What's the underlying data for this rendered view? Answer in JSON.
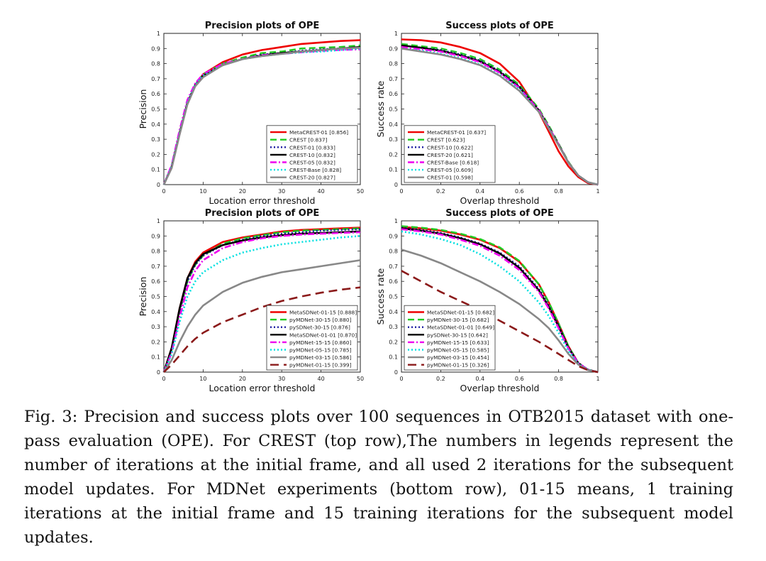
{
  "chart_data": [
    {
      "type": "line",
      "title": "Precision plots of OPE",
      "xlabel": "Location error threshold",
      "ylabel": "Precision",
      "xlim": [
        0,
        50
      ],
      "ylim": [
        0,
        1
      ],
      "xticks": [
        "0",
        "10",
        "20",
        "30",
        "40",
        "50"
      ],
      "yticks": [
        "0",
        "0.1",
        "0.2",
        "0.3",
        "0.4",
        "0.5",
        "0.6",
        "0.7",
        "0.8",
        "0.9",
        "1"
      ],
      "legend_position": "bottom-right",
      "grid": false,
      "x": [
        0,
        2,
        4,
        6,
        8,
        10,
        15,
        20,
        25,
        30,
        35,
        40,
        45,
        50
      ],
      "series": [
        {
          "name": "MetaCREST-01 [0.856]",
          "color": "#ee0000",
          "dash": "solid",
          "values": [
            0.0,
            0.12,
            0.34,
            0.54,
            0.66,
            0.73,
            0.81,
            0.86,
            0.89,
            0.91,
            0.93,
            0.94,
            0.95,
            0.955
          ]
        },
        {
          "name": "CREST [0.837]",
          "color": "#22cc22",
          "dash": "dash",
          "values": [
            0.0,
            0.12,
            0.34,
            0.54,
            0.66,
            0.73,
            0.8,
            0.84,
            0.87,
            0.88,
            0.9,
            0.905,
            0.91,
            0.92
          ]
        },
        {
          "name": "CREST-01 [0.833]",
          "color": "#1a1aa0",
          "dash": "dot",
          "values": [
            0.0,
            0.12,
            0.34,
            0.54,
            0.66,
            0.72,
            0.79,
            0.83,
            0.86,
            0.87,
            0.885,
            0.895,
            0.9,
            0.905
          ]
        },
        {
          "name": "CREST-10 [0.832]",
          "color": "#000000",
          "dash": "solid",
          "values": [
            0.0,
            0.12,
            0.34,
            0.54,
            0.66,
            0.72,
            0.79,
            0.83,
            0.855,
            0.87,
            0.88,
            0.89,
            0.9,
            0.91
          ]
        },
        {
          "name": "CREST-05 [0.832]",
          "color": "#ee00ee",
          "dash": "dashdot",
          "values": [
            0.0,
            0.13,
            0.36,
            0.56,
            0.67,
            0.73,
            0.8,
            0.83,
            0.855,
            0.865,
            0.875,
            0.885,
            0.89,
            0.895
          ]
        },
        {
          "name": "CREST-Base [0.828]",
          "color": "#00e0e0",
          "dash": "dot",
          "values": [
            0.0,
            0.12,
            0.34,
            0.54,
            0.66,
            0.72,
            0.79,
            0.83,
            0.85,
            0.865,
            0.875,
            0.88,
            0.89,
            0.9
          ]
        },
        {
          "name": "CREST-20 [0.827]",
          "color": "#888888",
          "dash": "solid",
          "values": [
            0.0,
            0.11,
            0.33,
            0.53,
            0.65,
            0.71,
            0.79,
            0.83,
            0.85,
            0.865,
            0.88,
            0.89,
            0.9,
            0.905
          ]
        }
      ]
    },
    {
      "type": "line",
      "title": "Success plots of OPE",
      "xlabel": "Overlap threshold",
      "ylabel": "Success rate",
      "xlim": [
        0,
        1
      ],
      "ylim": [
        0,
        1
      ],
      "xticks": [
        "0",
        "0.2",
        "0.4",
        "0.6",
        "0.8",
        "1"
      ],
      "yticks": [
        "0",
        "0.1",
        "0.2",
        "0.3",
        "0.4",
        "0.5",
        "0.6",
        "0.7",
        "0.8",
        "0.9",
        "1"
      ],
      "legend_position": "bottom-left",
      "grid": false,
      "x": [
        0,
        0.1,
        0.2,
        0.3,
        0.4,
        0.5,
        0.6,
        0.7,
        0.75,
        0.8,
        0.85,
        0.9,
        0.95,
        1.0
      ],
      "series": [
        {
          "name": "MetaCREST-01 [0.637]",
          "color": "#ee0000",
          "dash": "solid",
          "values": [
            0.96,
            0.955,
            0.94,
            0.91,
            0.87,
            0.8,
            0.68,
            0.48,
            0.35,
            0.22,
            0.12,
            0.05,
            0.01,
            0.0
          ]
        },
        {
          "name": "CREST [0.623]",
          "color": "#22cc22",
          "dash": "dash",
          "values": [
            0.93,
            0.915,
            0.9,
            0.87,
            0.83,
            0.76,
            0.66,
            0.5,
            0.39,
            0.27,
            0.15,
            0.06,
            0.015,
            0.0
          ]
        },
        {
          "name": "CREST-10 [0.622]",
          "color": "#1a1aa0",
          "dash": "dot",
          "values": [
            0.92,
            0.905,
            0.89,
            0.86,
            0.82,
            0.75,
            0.65,
            0.49,
            0.38,
            0.265,
            0.145,
            0.06,
            0.015,
            0.0
          ]
        },
        {
          "name": "CREST-20 [0.621]",
          "color": "#000000",
          "dash": "solid",
          "values": [
            0.92,
            0.905,
            0.885,
            0.855,
            0.815,
            0.745,
            0.645,
            0.49,
            0.38,
            0.265,
            0.145,
            0.06,
            0.015,
            0.0
          ]
        },
        {
          "name": "CREST-Base [0.618]",
          "color": "#ee00ee",
          "dash": "dashdot",
          "values": [
            0.91,
            0.895,
            0.88,
            0.85,
            0.81,
            0.74,
            0.64,
            0.49,
            0.38,
            0.265,
            0.145,
            0.06,
            0.015,
            0.0
          ]
        },
        {
          "name": "CREST-05 [0.609]",
          "color": "#00e0e0",
          "dash": "dot",
          "values": [
            0.9,
            0.885,
            0.865,
            0.835,
            0.795,
            0.725,
            0.63,
            0.48,
            0.375,
            0.26,
            0.145,
            0.06,
            0.015,
            0.0
          ]
        },
        {
          "name": "CREST-01 [0.598]",
          "color": "#888888",
          "dash": "solid",
          "values": [
            0.9,
            0.88,
            0.86,
            0.83,
            0.79,
            0.72,
            0.62,
            0.48,
            0.37,
            0.26,
            0.145,
            0.06,
            0.015,
            0.0
          ]
        }
      ]
    },
    {
      "type": "line",
      "title": "Precision plots of OPE",
      "xlabel": "Location error threshold",
      "ylabel": "Precision",
      "xlim": [
        0,
        50
      ],
      "ylim": [
        0,
        1
      ],
      "xticks": [
        "0",
        "10",
        "20",
        "30",
        "40",
        "50"
      ],
      "yticks": [
        "0",
        "0.1",
        "0.2",
        "0.3",
        "0.4",
        "0.5",
        "0.6",
        "0.7",
        "0.8",
        "0.9",
        "1"
      ],
      "legend_position": "bottom-right",
      "grid": false,
      "x": [
        0,
        2,
        4,
        6,
        8,
        10,
        15,
        20,
        25,
        30,
        35,
        40,
        45,
        50
      ],
      "series": [
        {
          "name": "MetaSDNet-01-15 [0.888]",
          "color": "#ee0000",
          "dash": "solid",
          "values": [
            0.0,
            0.16,
            0.42,
            0.62,
            0.73,
            0.79,
            0.86,
            0.89,
            0.91,
            0.93,
            0.94,
            0.945,
            0.95,
            0.955
          ]
        },
        {
          "name": "pyMDNet-30-15 [0.880]",
          "color": "#22cc22",
          "dash": "dash",
          "values": [
            0.0,
            0.15,
            0.4,
            0.6,
            0.71,
            0.77,
            0.85,
            0.885,
            0.905,
            0.925,
            0.935,
            0.94,
            0.945,
            0.95
          ]
        },
        {
          "name": "pySDNet-30-15 [0.876]",
          "color": "#1a1aa0",
          "dash": "dot",
          "values": [
            0.0,
            0.15,
            0.4,
            0.6,
            0.71,
            0.77,
            0.84,
            0.875,
            0.9,
            0.915,
            0.925,
            0.935,
            0.94,
            0.945
          ]
        },
        {
          "name": "MetaSDNet-01-01 [0.870]",
          "color": "#000000",
          "dash": "solid",
          "values": [
            0.0,
            0.16,
            0.42,
            0.62,
            0.72,
            0.78,
            0.84,
            0.87,
            0.89,
            0.905,
            0.915,
            0.92,
            0.925,
            0.93
          ]
        },
        {
          "name": "pyMDNet-15-15 [0.860]",
          "color": "#ee00ee",
          "dash": "dashdot",
          "values": [
            0.0,
            0.13,
            0.36,
            0.56,
            0.67,
            0.74,
            0.82,
            0.86,
            0.885,
            0.9,
            0.91,
            0.915,
            0.92,
            0.925
          ]
        },
        {
          "name": "pyMDNet-05-15 [0.785]",
          "color": "#00e0e0",
          "dash": "dot",
          "values": [
            0.0,
            0.12,
            0.33,
            0.5,
            0.6,
            0.66,
            0.74,
            0.79,
            0.82,
            0.845,
            0.86,
            0.875,
            0.89,
            0.9
          ]
        },
        {
          "name": "pyMDNet-03-15 [0.586]",
          "color": "#888888",
          "dash": "solid",
          "values": [
            0.0,
            0.08,
            0.2,
            0.3,
            0.38,
            0.44,
            0.53,
            0.59,
            0.63,
            0.66,
            0.68,
            0.7,
            0.72,
            0.74
          ]
        },
        {
          "name": "pyMDNet-01-15 [0.399]",
          "color": "#8b1a1a",
          "dash": "longdash",
          "values": [
            0.0,
            0.05,
            0.11,
            0.17,
            0.22,
            0.26,
            0.33,
            0.38,
            0.43,
            0.47,
            0.5,
            0.525,
            0.545,
            0.56
          ]
        }
      ]
    },
    {
      "type": "line",
      "title": "Success plots of OPE",
      "xlabel": "Overlap threshold",
      "ylabel": "Success rate",
      "xlim": [
        0,
        1
      ],
      "ylim": [
        0,
        1
      ],
      "xticks": [
        "0",
        "0.2",
        "0.4",
        "0.6",
        "0.8",
        "1"
      ],
      "yticks": [
        "0",
        "0.1",
        "0.2",
        "0.3",
        "0.4",
        "0.5",
        "0.6",
        "0.7",
        "0.8",
        "0.9",
        "1"
      ],
      "legend_position": "bottom-left",
      "grid": false,
      "x": [
        0,
        0.1,
        0.2,
        0.3,
        0.4,
        0.5,
        0.6,
        0.7,
        0.75,
        0.8,
        0.85,
        0.9,
        0.95,
        1.0
      ],
      "series": [
        {
          "name": "MetaSDNet-01-15 [0.682]",
          "color": "#ee0000",
          "dash": "solid",
          "values": [
            0.96,
            0.95,
            0.935,
            0.91,
            0.875,
            0.82,
            0.73,
            0.58,
            0.46,
            0.32,
            0.17,
            0.06,
            0.015,
            0.0
          ]
        },
        {
          "name": "pyMDNet-30-15 [0.682]",
          "color": "#22cc22",
          "dash": "dash",
          "values": [
            0.965,
            0.955,
            0.94,
            0.915,
            0.88,
            0.825,
            0.735,
            0.58,
            0.46,
            0.32,
            0.17,
            0.06,
            0.015,
            0.0
          ]
        },
        {
          "name": "MetaSDNet-01-01 [0.649]",
          "color": "#1a1aa0",
          "dash": "dot",
          "values": [
            0.955,
            0.94,
            0.92,
            0.89,
            0.85,
            0.79,
            0.7,
            0.55,
            0.44,
            0.31,
            0.16,
            0.06,
            0.015,
            0.0
          ]
        },
        {
          "name": "pySDNet-30-15 [0.642]",
          "color": "#000000",
          "dash": "solid",
          "values": [
            0.95,
            0.935,
            0.915,
            0.885,
            0.845,
            0.785,
            0.69,
            0.54,
            0.43,
            0.3,
            0.16,
            0.06,
            0.015,
            0.0
          ]
        },
        {
          "name": "pyMDNet-15-15 [0.633]",
          "color": "#ee00ee",
          "dash": "dashdot",
          "values": [
            0.945,
            0.93,
            0.91,
            0.875,
            0.835,
            0.77,
            0.675,
            0.53,
            0.42,
            0.29,
            0.155,
            0.06,
            0.015,
            0.0
          ]
        },
        {
          "name": "pyMDNet-05-15 [0.585]",
          "color": "#00e0e0",
          "dash": "dot",
          "values": [
            0.93,
            0.91,
            0.88,
            0.84,
            0.78,
            0.7,
            0.6,
            0.46,
            0.37,
            0.26,
            0.14,
            0.055,
            0.015,
            0.0
          ]
        },
        {
          "name": "pyMDNet-03-15 [0.454]",
          "color": "#888888",
          "dash": "solid",
          "values": [
            0.81,
            0.77,
            0.72,
            0.66,
            0.6,
            0.53,
            0.45,
            0.35,
            0.29,
            0.21,
            0.12,
            0.05,
            0.012,
            0.0
          ]
        },
        {
          "name": "pyMDNet-01-15 [0.326]",
          "color": "#8b1a1a",
          "dash": "longdash",
          "values": [
            0.67,
            0.6,
            0.53,
            0.47,
            0.41,
            0.34,
            0.27,
            0.2,
            0.16,
            0.12,
            0.08,
            0.04,
            0.012,
            0.0
          ]
        }
      ]
    }
  ],
  "caption": "Fig. 3: Precision and success plots over 100 sequences in OTB2015 dataset with one-pass evaluation (OPE). For CREST (top row),The numbers in legends represent the number of iterations at the initial frame, and all used 2 iterations for the subsequent model updates. For MDNet experiments (bottom row), 01-15 means, 1 training iterations at the initial frame and 15 training iterations for the subsequent model updates."
}
